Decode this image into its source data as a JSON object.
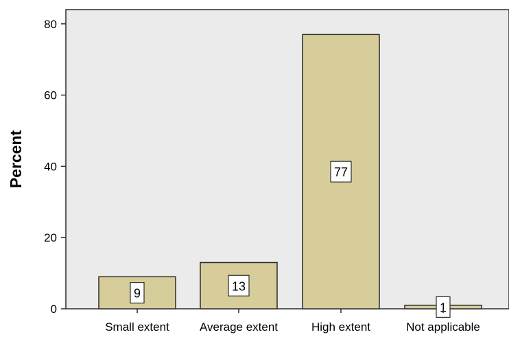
{
  "chart_data": {
    "type": "bar",
    "title": "",
    "xlabel": "",
    "ylabel": "Percent",
    "categories": [
      "Small extent",
      "Average extent",
      "High extent",
      "Not applicable"
    ],
    "values": [
      9,
      13,
      77,
      1
    ],
    "data_labels": [
      "9",
      "13",
      "77",
      "1"
    ],
    "ylim": [
      0,
      84
    ],
    "yticks": [
      0,
      20,
      40,
      60,
      80
    ],
    "grid": false,
    "legend": "none",
    "colors": {
      "plot_background": "#ebebeb",
      "bar_fill": "#d6cd9a",
      "bar_stroke": "#2b2b2b",
      "axis": "#2b2b2b",
      "label_box": "#ffffff"
    }
  }
}
